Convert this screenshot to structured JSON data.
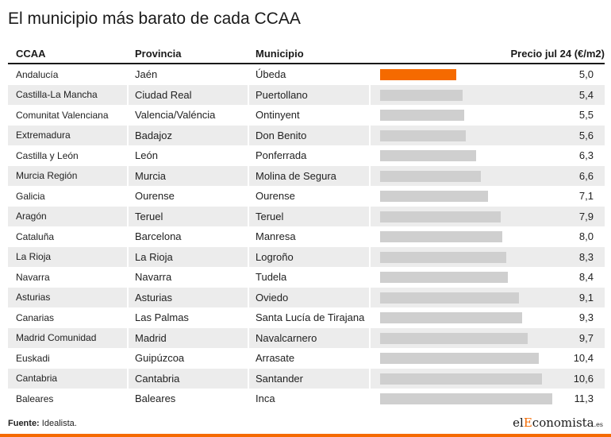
{
  "title": "El municipio más barato de cada CCAA",
  "columns": {
    "ccaa": "CCAA",
    "provincia": "Provincia",
    "municipio": "Municipio",
    "precio": "Precio jul 24 (€/m2)"
  },
  "colors": {
    "accent": "#f56a00",
    "bar": "#cfcfcf",
    "stripe": "#ececec"
  },
  "chart_data": {
    "type": "table",
    "title": "El municipio más barato de cada CCAA",
    "columns": [
      "CCAA",
      "Provincia",
      "Municipio",
      "Precio jul 24 (€/m2)"
    ],
    "highlight_index": 0,
    "xlim": [
      0,
      12.5
    ],
    "rows": [
      {
        "ccaa": "Andalucía",
        "provincia": "Jaén",
        "municipio": "Úbeda",
        "value": 5.0,
        "label": "5,0"
      },
      {
        "ccaa": "Castilla-La Mancha",
        "provincia": "Ciudad Real",
        "municipio": "Puertollano",
        "value": 5.4,
        "label": "5,4"
      },
      {
        "ccaa": "Comunitat Valenciana",
        "provincia": "Valencia/Valéncia",
        "municipio": "Ontinyent",
        "value": 5.5,
        "label": "5,5"
      },
      {
        "ccaa": "Extremadura",
        "provincia": "Badajoz",
        "municipio": "Don Benito",
        "value": 5.6,
        "label": "5,6"
      },
      {
        "ccaa": "Castilla y León",
        "provincia": "León",
        "municipio": "Ponferrada",
        "value": 6.3,
        "label": "6,3"
      },
      {
        "ccaa": "Murcia Región",
        "provincia": "Murcia",
        "municipio": "Molina de Segura",
        "value": 6.6,
        "label": "6,6"
      },
      {
        "ccaa": "Galicia",
        "provincia": "Ourense",
        "municipio": "Ourense",
        "value": 7.1,
        "label": "7,1"
      },
      {
        "ccaa": "Aragón",
        "provincia": "Teruel",
        "municipio": "Teruel",
        "value": 7.9,
        "label": "7,9"
      },
      {
        "ccaa": "Cataluña",
        "provincia": "Barcelona",
        "municipio": "Manresa",
        "value": 8.0,
        "label": "8,0"
      },
      {
        "ccaa": "La Rioja",
        "provincia": "La Rioja",
        "municipio": "Logroño",
        "value": 8.3,
        "label": "8,3"
      },
      {
        "ccaa": "Navarra",
        "provincia": "Navarra",
        "municipio": "Tudela",
        "value": 8.4,
        "label": "8,4"
      },
      {
        "ccaa": "Asturias",
        "provincia": "Asturias",
        "municipio": "Oviedo",
        "value": 9.1,
        "label": "9,1"
      },
      {
        "ccaa": "Canarias",
        "provincia": "Las Palmas",
        "municipio": "Santa Lucía de Tirajana",
        "value": 9.3,
        "label": "9,3"
      },
      {
        "ccaa": "Madrid Comunidad",
        "provincia": "Madrid",
        "municipio": "Navalcarnero",
        "value": 9.7,
        "label": "9,7"
      },
      {
        "ccaa": "Euskadi",
        "provincia": "Guipúzcoa",
        "municipio": "Arrasate",
        "value": 10.4,
        "label": "10,4"
      },
      {
        "ccaa": "Cantabria",
        "provincia": "Cantabria",
        "municipio": "Santander",
        "value": 10.6,
        "label": "10,6"
      },
      {
        "ccaa": "Baleares",
        "provincia": "Baleares",
        "municipio": "Inca",
        "value": 11.3,
        "label": "11,3"
      }
    ]
  },
  "footer": {
    "source_label": "Fuente:",
    "source_value": "Idealista."
  },
  "brand": {
    "prefix": "el",
    "initial": "E",
    "rest": "conomista",
    "tld": ".es"
  }
}
